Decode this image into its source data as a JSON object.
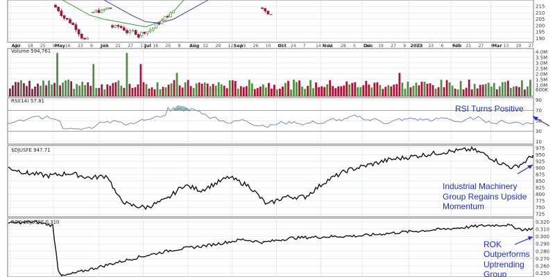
{
  "colors": {
    "up": "#4f8f3f",
    "down": "#a3163a",
    "ma_short": "#3a9a3a",
    "ma_long": "#3a3ab0",
    "rsi": "#6b7fa8",
    "line": "#111111",
    "annotation": "#1f2fbf",
    "grid": "#d6dbe4",
    "panel_border": "#7a7a7a",
    "rsi_fill": "#6aaaa0"
  },
  "chart_data": [
    {
      "type": "candlestick",
      "panel": "price",
      "y_ticks": [
        "215",
        "210",
        "205",
        "200",
        "195",
        "190"
      ],
      "y_tick_values": [
        215,
        210,
        205,
        200,
        195,
        190
      ],
      "ylim": [
        187,
        220
      ]
    },
    {
      "type": "bar",
      "panel": "volume",
      "title": "Volume 594,761",
      "y_ticks": [
        "4.0M",
        "3.5M",
        "3.0M",
        "2.5M",
        "2.0M",
        "1.5M",
        "1.0M",
        "600K"
      ],
      "y_tick_values": [
        4.0,
        3.5,
        3.0,
        2.5,
        2.0,
        1.5,
        1.0,
        0.6
      ],
      "unit": "M",
      "ylim": [
        0,
        4.3
      ]
    },
    {
      "type": "line",
      "panel": "rsi",
      "title": "RSI(14) 57.81",
      "y_ticks": [
        "90",
        "70",
        "50",
        "30",
        "10"
      ],
      "y_tick_values": [
        90,
        70,
        50,
        30,
        10
      ],
      "ylim": [
        5,
        95
      ],
      "annotations": [
        "RSI Turns Positive"
      ]
    },
    {
      "type": "line",
      "panel": "djusfe",
      "title": "$DJUSFE 947.71",
      "y_ticks": [
        "975",
        "950",
        "925",
        "900",
        "875",
        "850",
        "825",
        "800",
        "775",
        "750",
        "725"
      ],
      "y_tick_values": [
        975,
        950,
        925,
        900,
        875,
        850,
        825,
        800,
        775,
        750,
        725
      ],
      "ylim": [
        715,
        985
      ],
      "annotations": [
        "Industrial Machinery",
        "Group Regains Upside",
        "Momentum"
      ]
    },
    {
      "type": "line",
      "panel": "ratio",
      "title": "ROK:$DJUSFE 0.310",
      "y_ticks": [
        "0.320",
        "0.310",
        "0.300",
        "0.290",
        "0.280",
        "0.270",
        "0.260",
        "0.250"
      ],
      "y_tick_values": [
        0.32,
        0.31,
        0.3,
        0.29,
        0.28,
        0.27,
        0.26,
        0.25
      ],
      "ylim": [
        0.245,
        0.325
      ],
      "annotations": [
        "ROK",
        "Outperforms",
        "Uptrending",
        "Group"
      ]
    }
  ],
  "x_axis": {
    "months": [
      {
        "label": "Apr",
        "pos": 0.005
      },
      {
        "label": "May",
        "pos": 0.087
      },
      {
        "label": "Jun",
        "pos": 0.174
      },
      {
        "label": "Jul",
        "pos": 0.258
      },
      {
        "label": "Aug",
        "pos": 0.343
      },
      {
        "label": "Sep",
        "pos": 0.427
      },
      {
        "label": "Oct",
        "pos": 0.511
      },
      {
        "label": "Nov",
        "pos": 0.596
      },
      {
        "label": "Dec",
        "pos": 0.674
      },
      {
        "label": "2023",
        "pos": 0.763
      },
      {
        "label": "Feb",
        "pos": 0.843
      },
      {
        "label": "Mar",
        "pos": 0.919
      }
    ],
    "days": [
      "11",
      "18",
      "25",
      "9",
      "16",
      "23",
      "6",
      "13",
      "21",
      "27",
      "11",
      "18",
      "25",
      "8",
      "15",
      "22",
      "29",
      "12",
      "19",
      "26",
      "10",
      "17",
      "24",
      "7",
      "14",
      "21",
      "28",
      "5",
      "12",
      "19",
      "27",
      "9",
      "17",
      "23",
      "6",
      "13",
      "21",
      "27",
      "6",
      "13",
      "20",
      "27"
    ]
  }
}
